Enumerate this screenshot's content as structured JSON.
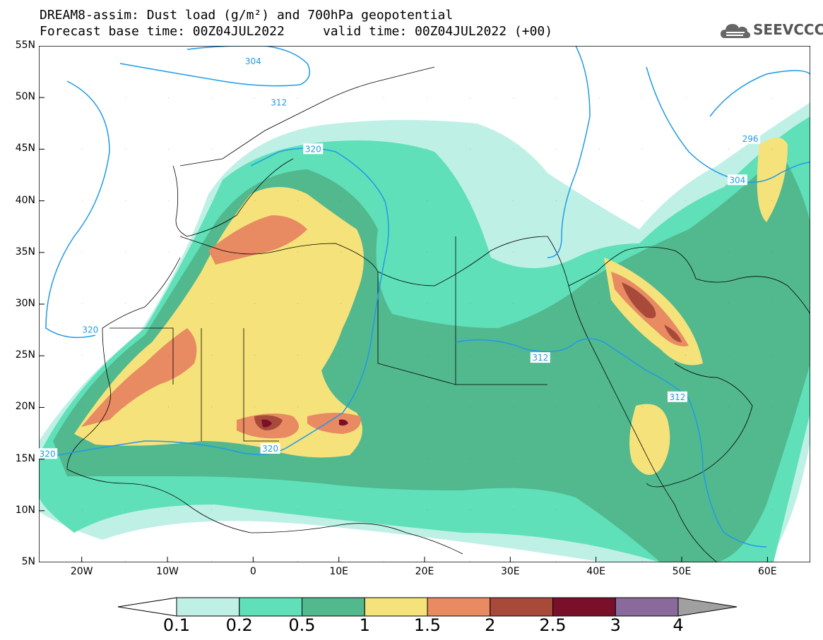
{
  "title": {
    "line1": "DREAM8-assim: Dust load (g/m²) and 700hPa geopotential",
    "line2": "Forecast base time: 00Z04JUL2022     valid time: 00Z04JUL2022 (+00)"
  },
  "logo": {
    "text": "SEEVCCC",
    "icon": "cloud-icon"
  },
  "map": {
    "lon_range": [
      -25,
      65
    ],
    "lat_range": [
      5,
      55
    ],
    "lat_labels": [
      "55N",
      "50N",
      "45N",
      "40N",
      "35N",
      "30N",
      "25N",
      "20N",
      "15N",
      "10N",
      "5N"
    ],
    "lon_labels": [
      "20W",
      "10W",
      "0",
      "10E",
      "20E",
      "30E",
      "40E",
      "50E",
      "60E"
    ],
    "contour_labels": [
      {
        "text": "304",
        "lon": 0,
        "lat": 53.5
      },
      {
        "text": "312",
        "lon": 3,
        "lat": 49.5
      },
      {
        "text": "320",
        "lon": 7,
        "lat": 45
      },
      {
        "text": "320",
        "lon": -19,
        "lat": 27.5
      },
      {
        "text": "320",
        "lon": -24,
        "lat": 15.5
      },
      {
        "text": "320",
        "lon": 2,
        "lat": 16
      },
      {
        "text": "312",
        "lon": 33.5,
        "lat": 24.8
      },
      {
        "text": "312",
        "lon": 49.5,
        "lat": 21
      },
      {
        "text": "304",
        "lon": 56.5,
        "lat": 42
      },
      {
        "text": "296",
        "lon": 58,
        "lat": 46
      }
    ]
  },
  "colorbar": {
    "levels": [
      "0.1",
      "0.2",
      "0.5",
      "1",
      "1.5",
      "2",
      "2.5",
      "3",
      "4"
    ],
    "colors": [
      "#bff0e6",
      "#5fe0b8",
      "#52b88e",
      "#f5e27a",
      "#e88a62",
      "#a84a3a",
      "#7a0f2a",
      "#8a6a9c"
    ],
    "under_color": "#ffffff",
    "over_color": "#a0a0a0"
  },
  "colors": {
    "geopotential": "#1e9be6",
    "borders": "#000000"
  }
}
